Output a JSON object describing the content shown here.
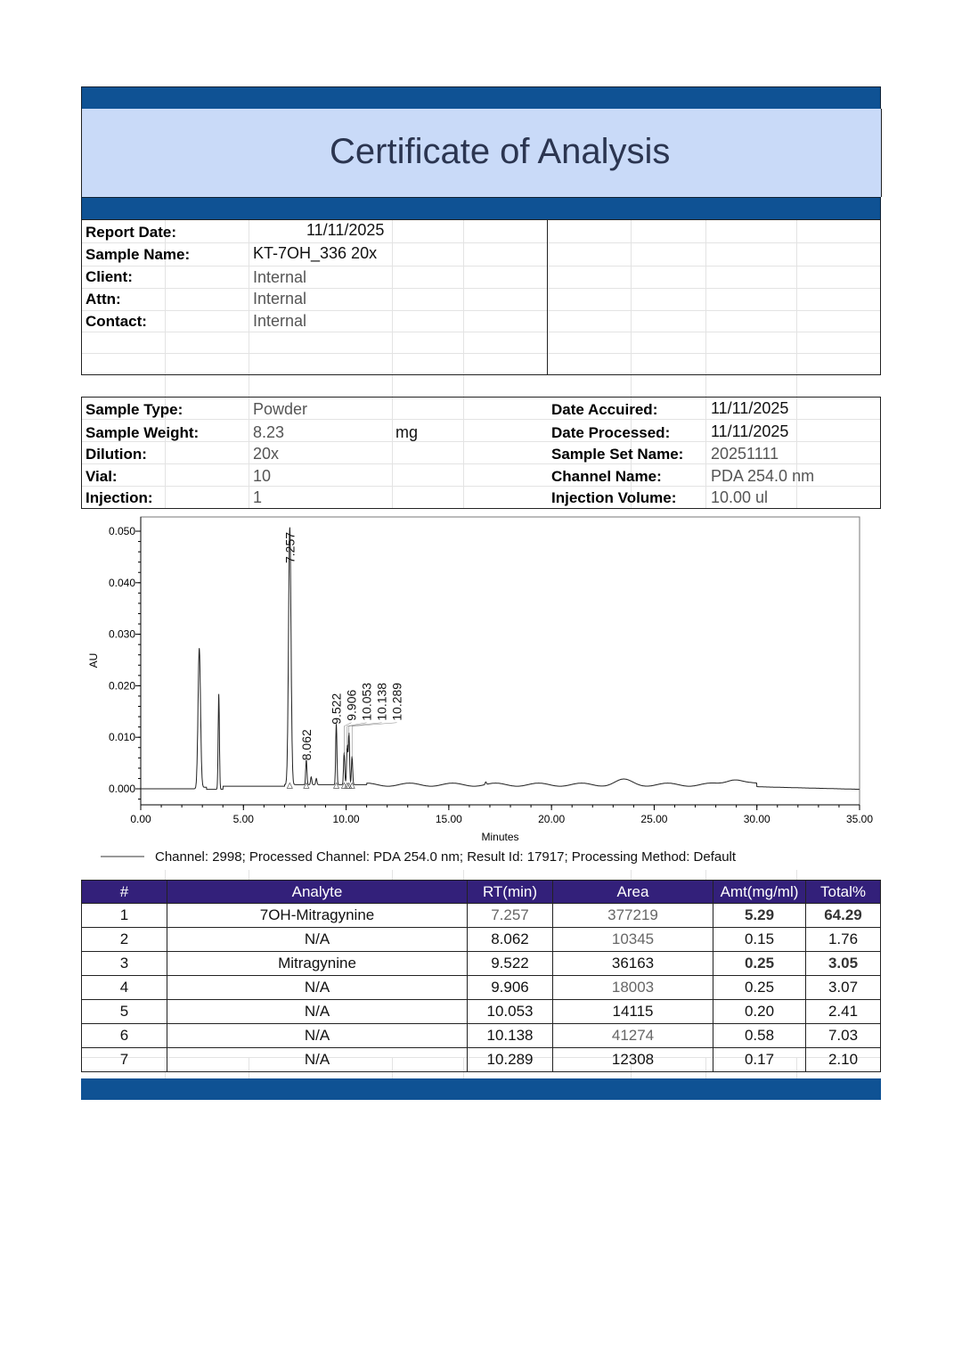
{
  "header": {
    "title": "Certificate of Analysis",
    "band_color": "#0f5294",
    "title_bg": "#c9daf8"
  },
  "report_info": [
    {
      "label": "Report Date:",
      "value": "11/11/2025"
    },
    {
      "label": "Sample Name:",
      "value": "KT-7OH_336 20x"
    },
    {
      "label": "Client:",
      "value": "Internal"
    },
    {
      "label": "Attn:",
      "value": "Internal"
    },
    {
      "label": "Contact:",
      "value": "Internal"
    }
  ],
  "sample_info": {
    "left": [
      {
        "label": "Sample Type:",
        "value": "Powder"
      },
      {
        "label": "Sample Weight:",
        "value": "8.23",
        "unit": "mg"
      },
      {
        "label": "Dilution:",
        "value": "20x"
      },
      {
        "label": "Vial:",
        "value": "10"
      },
      {
        "label": "Injection:",
        "value": "1"
      }
    ],
    "right": [
      {
        "label": "Date Accuired:",
        "value": "11/11/2025"
      },
      {
        "label": "Date Processed:",
        "value": "11/11/2025"
      },
      {
        "label": "Sample Set Name:",
        "value": "20251111"
      },
      {
        "label": "Channel Name:",
        "value": "PDA 254.0 nm"
      },
      {
        "label": "Injection Volume:",
        "value": "10.00 ul"
      }
    ]
  },
  "chart_data": {
    "type": "line",
    "xlabel": "Minutes",
    "ylabel": "AU",
    "xlim": [
      0,
      35
    ],
    "ylim": [
      -0.003,
      0.053
    ],
    "xticks": [
      "0.00",
      "5.00",
      "10.00",
      "15.00",
      "20.00",
      "25.00",
      "30.00",
      "35.00"
    ],
    "yticks": [
      "0.000",
      "0.010",
      "0.020",
      "0.030",
      "0.040",
      "0.050"
    ],
    "labeled_peaks": [
      {
        "rt": 7.257,
        "label": "7.257",
        "height": 0.05
      },
      {
        "rt": 8.062,
        "label": "8.062",
        "height": 0.0048
      },
      {
        "rt": 9.522,
        "label": "9.522",
        "height": 0.0118
      },
      {
        "rt": 9.906,
        "label": "9.906",
        "height": 0.0062
      },
      {
        "rt": 10.053,
        "label": "10.053",
        "height": 0.0075
      },
      {
        "rt": 10.138,
        "label": "10.138",
        "height": 0.01
      },
      {
        "rt": 10.289,
        "label": "10.289",
        "height": 0.0055
      }
    ],
    "unlabeled_peaks": [
      {
        "rt": 2.85,
        "height": 0.027
      },
      {
        "rt": 3.8,
        "height": 0.0185
      },
      {
        "rt": 8.3,
        "height": 0.0015
      },
      {
        "rt": 8.55,
        "height": 0.0012
      },
      {
        "rt": 16.8,
        "height": 0.0005
      },
      {
        "rt": 23.5,
        "height": 0.0008
      },
      {
        "rt": 28.9,
        "height": 0.0012
      }
    ],
    "legend": "Channel: 2998;   Processed Channel:  PDA 254.0 nm;   Result Id:  17917;   Processing Method:  Default",
    "grid": false
  },
  "results": {
    "headers": [
      "#",
      "Analyte",
      "RT(min)",
      "Area",
      "Amt(mg/ml)",
      "Total%"
    ],
    "header_color": "#33207a",
    "rows": [
      [
        "1",
        "7OH-Mitragynine",
        "7.257",
        "377219",
        "5.29",
        "64.29"
      ],
      [
        "2",
        "N/A",
        "8.062",
        "10345",
        "0.15",
        "1.76"
      ],
      [
        "3",
        "Mitragynine",
        "9.522",
        "36163",
        "0.25",
        "3.05"
      ],
      [
        "4",
        "N/A",
        "9.906",
        "18003",
        "0.25",
        "3.07"
      ],
      [
        "5",
        "N/A",
        "10.053",
        "14115",
        "0.20",
        "2.41"
      ],
      [
        "6",
        "N/A",
        "10.138",
        "41274",
        "0.58",
        "7.03"
      ],
      [
        "7",
        "N/A",
        "10.289",
        "12308",
        "0.17",
        "2.10"
      ]
    ]
  }
}
